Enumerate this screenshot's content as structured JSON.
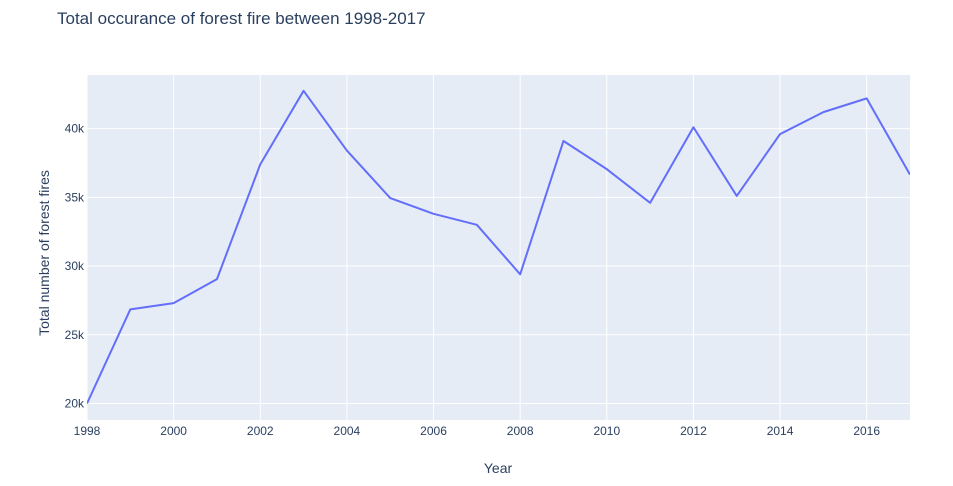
{
  "chart_data": {
    "type": "line",
    "title": "Total occurance of forest fire between 1998-2017",
    "xlabel": "Year",
    "ylabel": "Total number of  forest fires",
    "x": [
      1998,
      1999,
      2000,
      2001,
      2002,
      2003,
      2004,
      2005,
      2006,
      2007,
      2008,
      2009,
      2010,
      2011,
      2012,
      2013,
      2014,
      2015,
      2016,
      2017
    ],
    "series": [
      {
        "values": [
          20000,
          26850,
          27300,
          29050,
          37400,
          42750,
          38400,
          34950,
          33800,
          33000,
          29400,
          39100,
          37050,
          34600,
          40100,
          35100,
          39600,
          41200,
          42200,
          36650
        ]
      }
    ],
    "xlim": [
      1998,
      2017
    ],
    "ylim": [
      18800,
      43900
    ],
    "xticks": [
      1998,
      2000,
      2002,
      2004,
      2006,
      2008,
      2010,
      2012,
      2014,
      2016
    ],
    "xtick_labels": [
      "1998",
      "2000",
      "2002",
      "2004",
      "2006",
      "2008",
      "2010",
      "2012",
      "2014",
      "2016"
    ],
    "yticks": [
      20000,
      25000,
      30000,
      35000,
      40000
    ],
    "ytick_labels": [
      "20k",
      "25k",
      "30k",
      "35k",
      "40k"
    ],
    "grid": true,
    "legend": "none",
    "colors": {
      "line": "#636efa",
      "plot_bg": "#e5ecf6",
      "grid": "#ffffff",
      "text": "#2a3f5f"
    }
  }
}
